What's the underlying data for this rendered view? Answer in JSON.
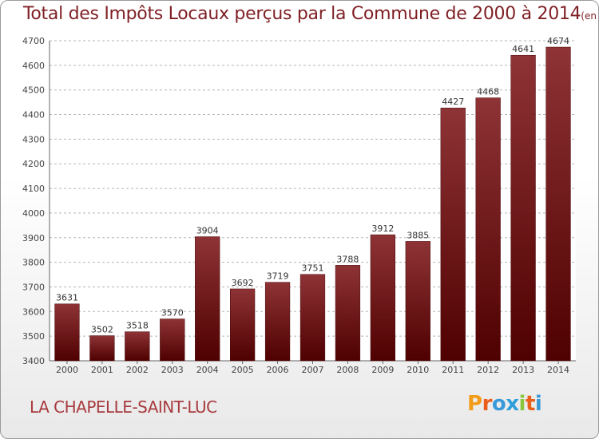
{
  "header": {
    "title": "Total des Impôts Locaux perçus par la Commune de 2000 à 2014",
    "unit": "(en milliers d'€)"
  },
  "footer": {
    "commune": "LA CHAPELLE-SAINT-LUC",
    "brand": "Proxiti"
  },
  "colors": {
    "title": "#7f1f24",
    "bar_top": "#8e3336",
    "bar_bottom": "#4f0000",
    "commune": "#a83a3e",
    "brand_letters": [
      "#f39c1a",
      "#e8601c",
      "#3a9ad9",
      "#2f9fda",
      "#8cc63f",
      "#e8601c",
      "#3a9ad9"
    ]
  },
  "chart_data": {
    "type": "bar",
    "categories": [
      "2000",
      "2001",
      "2002",
      "2003",
      "2004",
      "2005",
      "2006",
      "2007",
      "2008",
      "2009",
      "2010",
      "2011",
      "2012",
      "2013",
      "2014"
    ],
    "values": [
      3631,
      3502,
      3518,
      3570,
      3904,
      3692,
      3719,
      3751,
      3788,
      3912,
      3885,
      4427,
      4468,
      4641,
      4674
    ],
    "title": "Total des Impôts Locaux perçus par la Commune de 2000 à 2014",
    "unit": "(en milliers d'€)",
    "xlabel": "",
    "ylabel": "",
    "ylim": [
      3400,
      4700
    ],
    "yticks": [
      3400,
      3500,
      3600,
      3700,
      3800,
      3900,
      4000,
      4100,
      4200,
      4300,
      4400,
      4500,
      4600,
      4700
    ],
    "grid": true,
    "data_labels": true
  }
}
